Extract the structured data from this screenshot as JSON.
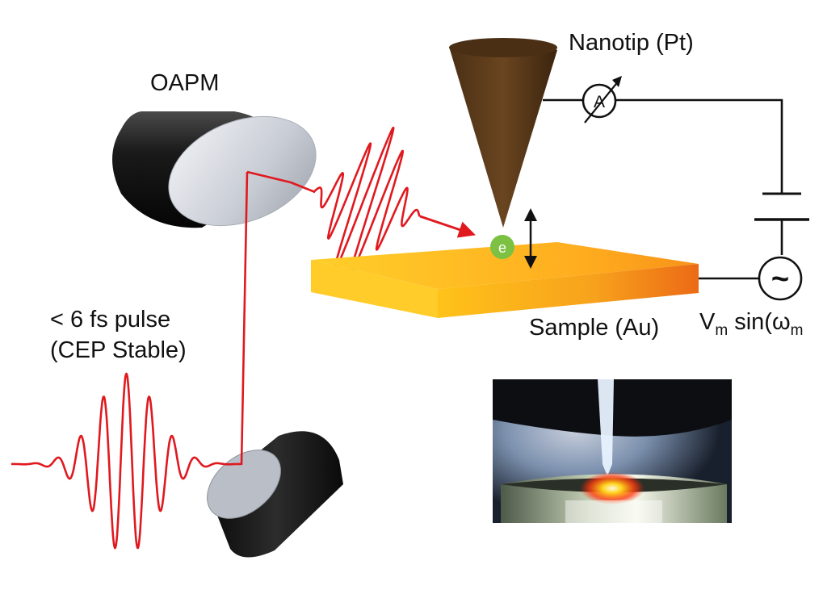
{
  "labels": {
    "oapm": "OAPM",
    "nanotip": "Nanotip (Pt)",
    "pulse_line1": "< 6 fs pulse",
    "pulse_line2": "(CEP Stable)",
    "sample": "Sample (Au)",
    "electron": "e",
    "ammeter": "A",
    "ac_source": "~",
    "voltage_v": "V",
    "voltage_sub1": "m",
    "voltage_mid": " sin(ω",
    "voltage_sub2": "m"
  },
  "colors": {
    "beam": "#e0191f",
    "tip": "#5a3a1a",
    "sample_light": "#ffc21a",
    "sample_dark": "#f07a18",
    "electron": "#7cc142",
    "mirror_body": "#1e1e1e",
    "mirror_face": "#d2d6de",
    "wire": "#111111"
  },
  "icons": {
    "ammeter": "ammeter-icon",
    "ac_source": "ac-source-icon",
    "battery": "battery-icon",
    "double_arrow": "double-arrow-icon"
  }
}
